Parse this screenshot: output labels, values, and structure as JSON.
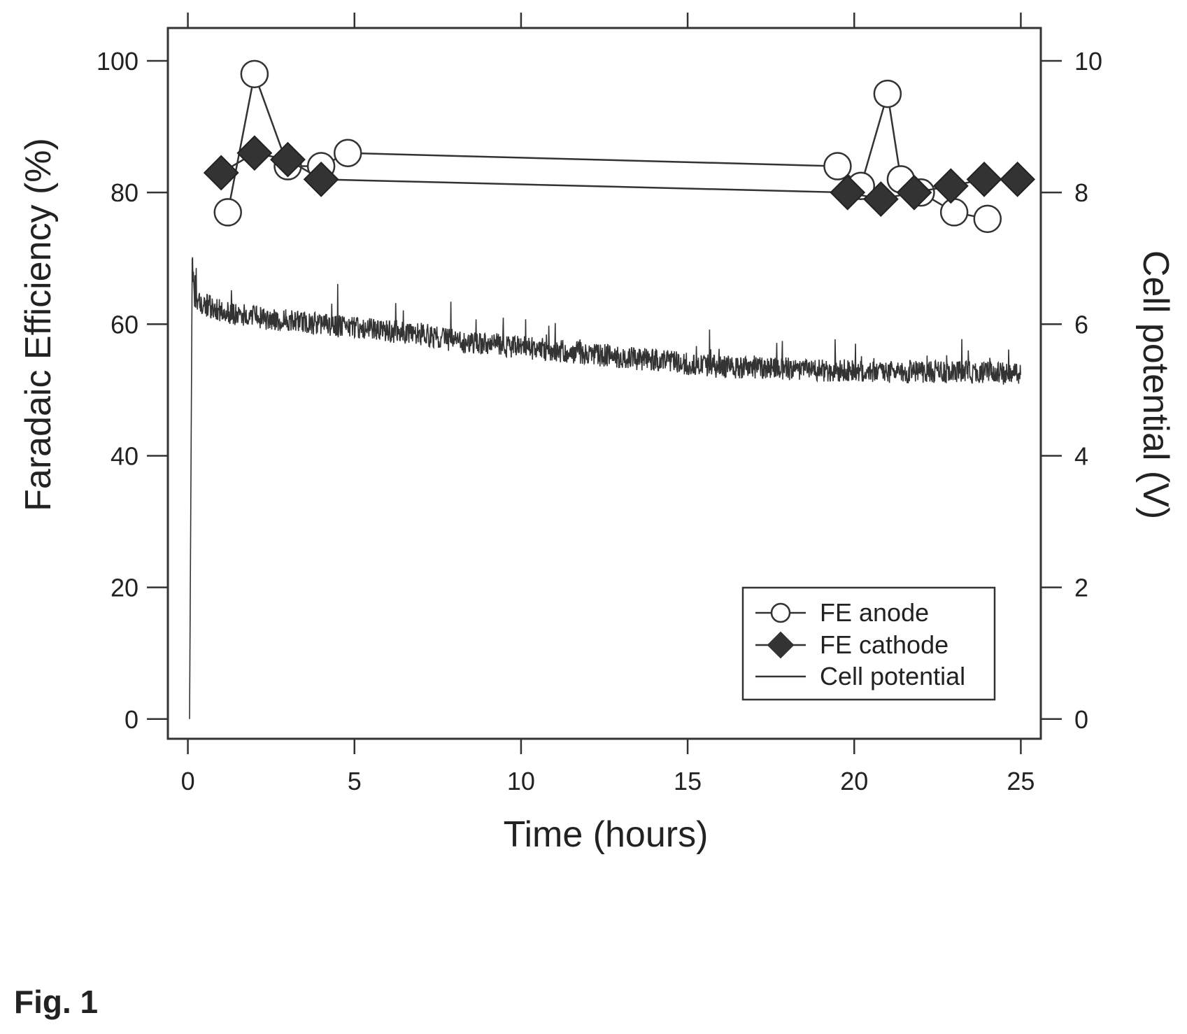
{
  "figure": {
    "label": "Fig. 1"
  },
  "chart_data": {
    "type": "line",
    "xlabel": "Time (hours)",
    "ylabel": "Faradaic Efficiency (%)",
    "y2label": "Cell potential (V)",
    "xlim": [
      -0.6,
      25.6
    ],
    "ylim": [
      -3,
      105
    ],
    "y2lim": [
      -0.3,
      10.5
    ],
    "xticks": [
      0,
      5,
      10,
      15,
      20,
      25
    ],
    "yticks": [
      0,
      20,
      40,
      60,
      80,
      100
    ],
    "y2ticks": [
      0,
      2,
      4,
      6,
      8,
      10
    ],
    "grid": false,
    "legend_position": "bottom-right",
    "series": [
      {
        "name": "FE anode",
        "axis": "left",
        "marker": "circle",
        "x": [
          1.2,
          2.0,
          3.0,
          4.0,
          4.8,
          19.5,
          20.2,
          21.0,
          21.4,
          22.0,
          23.0,
          24.0
        ],
        "y": [
          77,
          98,
          84,
          84,
          86,
          84,
          81,
          95,
          82,
          80,
          77,
          76
        ]
      },
      {
        "name": "FE cathode",
        "axis": "left",
        "marker": "diamond",
        "x": [
          1.0,
          2.0,
          3.0,
          4.0,
          19.8,
          20.8,
          21.8,
          22.9,
          23.9,
          24.9
        ],
        "y": [
          83,
          86,
          85,
          82,
          80,
          79,
          80,
          81,
          82,
          82
        ]
      },
      {
        "name": "Cell potential",
        "axis": "right",
        "marker": "none",
        "x": [
          0.05,
          0.13,
          0.2,
          0.5,
          1,
          2,
          3,
          4,
          5,
          6,
          7,
          8,
          9,
          10,
          11,
          12,
          13,
          14,
          15,
          16,
          17,
          18,
          19,
          20,
          21,
          22,
          23,
          24,
          25
        ],
        "y": [
          0.0,
          7.0,
          6.4,
          6.3,
          6.2,
          6.1,
          6.05,
          6.0,
          5.95,
          5.9,
          5.85,
          5.75,
          5.7,
          5.65,
          5.6,
          5.55,
          5.5,
          5.45,
          5.4,
          5.35,
          5.35,
          5.32,
          5.3,
          5.3,
          5.28,
          5.27,
          5.27,
          5.26,
          5.25
        ],
        "noise_amplitude": 0.35
      }
    ]
  }
}
